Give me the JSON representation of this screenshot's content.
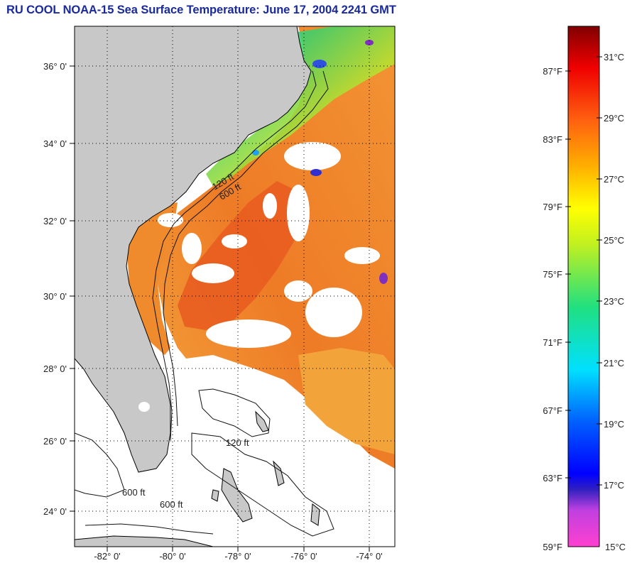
{
  "title": "RU COOL  NOAA-15  Sea Surface Temperature:  June 17, 2004 2241 GMT",
  "map": {
    "lat_labels": [
      "36° 0'",
      "34° 0'",
      "32° 0'",
      "30° 0'",
      "28° 0'",
      "26° 0'",
      "24° 0'"
    ],
    "lon_labels": [
      "-82° 0'",
      "-80° 0'",
      "-78° 0'",
      "-76° 0'",
      "-74° 0'"
    ],
    "contour_labels": [
      "120 ft",
      "600 ft"
    ],
    "colors": {
      "land": "#c8c8c8",
      "cloud": "#ffffff",
      "warm": "#f08a2a",
      "hot": "#e8521e",
      "gulf": "#f2a33a"
    }
  },
  "colorbar": {
    "fahrenheit": [
      "87°F",
      "83°F",
      "79°F",
      "75°F",
      "71°F",
      "67°F",
      "63°F",
      "59°F"
    ],
    "celsius": [
      "31°C",
      "29°C",
      "27°C",
      "25°C",
      "23°C",
      "21°C",
      "19°C",
      "17°C",
      "15°C"
    ]
  }
}
